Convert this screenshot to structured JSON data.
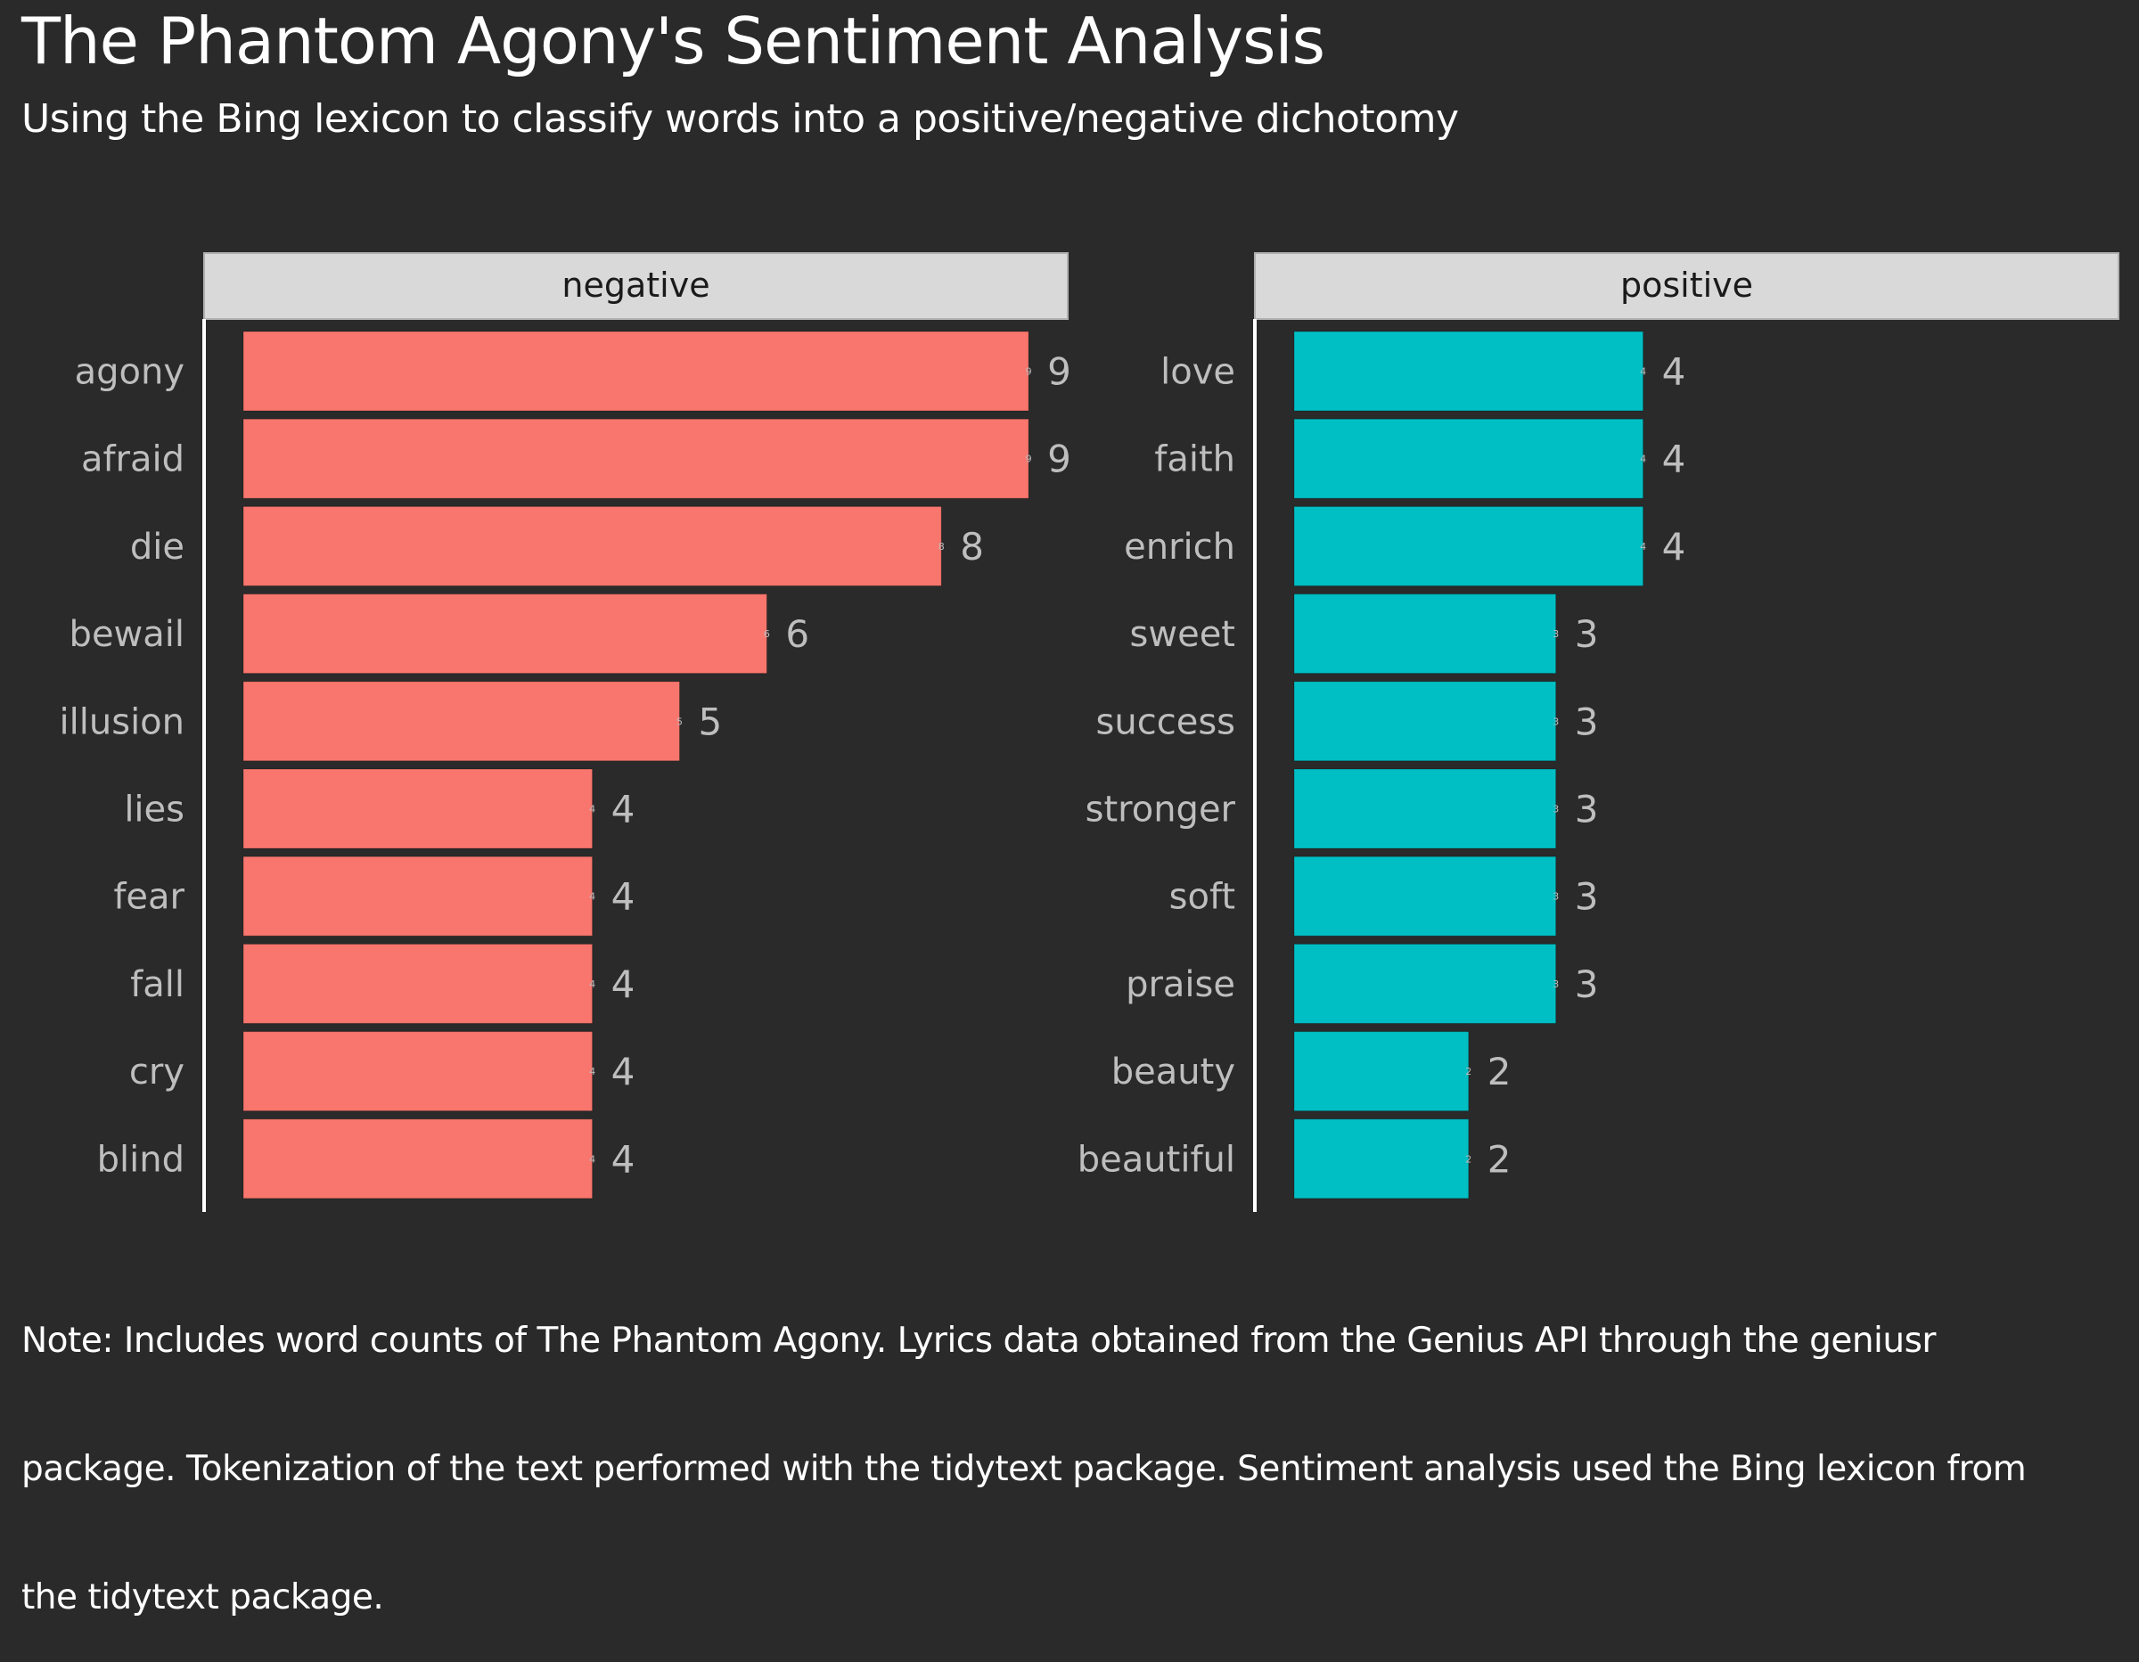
{
  "title": "The Phantom Agony's Sentiment Analysis",
  "subtitle": "Using the Bing lexicon to classify words into a positive/negative dichotomy",
  "caption_lines": [
    "Note: Includes word counts of The Phantom Agony. Lyrics data obtained from the Genius API through the geniusr",
    "package. Tokenization of the text performed with the tidytext package. Sentiment analysis used the Bing lexicon from",
    "the tidytext package."
  ],
  "colors": {
    "background": "#2a2a2a",
    "negative": "#F8766D",
    "positive": "#00BFC4",
    "strip": "#d9d9d9",
    "axis_text": "#bebebe"
  },
  "chart_data": {
    "type": "bar",
    "orientation": "horizontal",
    "title": "The Phantom Agony's Sentiment Analysis",
    "subtitle": "Using the Bing lexicon to classify words into a positive/negative dichotomy",
    "xlabel": "",
    "ylabel": "",
    "grid": false,
    "legend": "none",
    "facets": [
      {
        "name": "negative",
        "color": "#F8766D",
        "categories": [
          "agony",
          "afraid",
          "die",
          "bewail",
          "illusion",
          "lies",
          "fear",
          "fall",
          "cry",
          "blind"
        ],
        "values": [
          9,
          9,
          8,
          6,
          5,
          4,
          4,
          4,
          4,
          4
        ]
      },
      {
        "name": "positive",
        "color": "#00BFC4",
        "categories": [
          "love",
          "faith",
          "enrich",
          "sweet",
          "success",
          "stronger",
          "soft",
          "praise",
          "beauty",
          "beautiful"
        ],
        "values": [
          4,
          4,
          4,
          3,
          3,
          3,
          3,
          3,
          2,
          2
        ]
      }
    ],
    "xlim": [
      0,
      9
    ]
  }
}
